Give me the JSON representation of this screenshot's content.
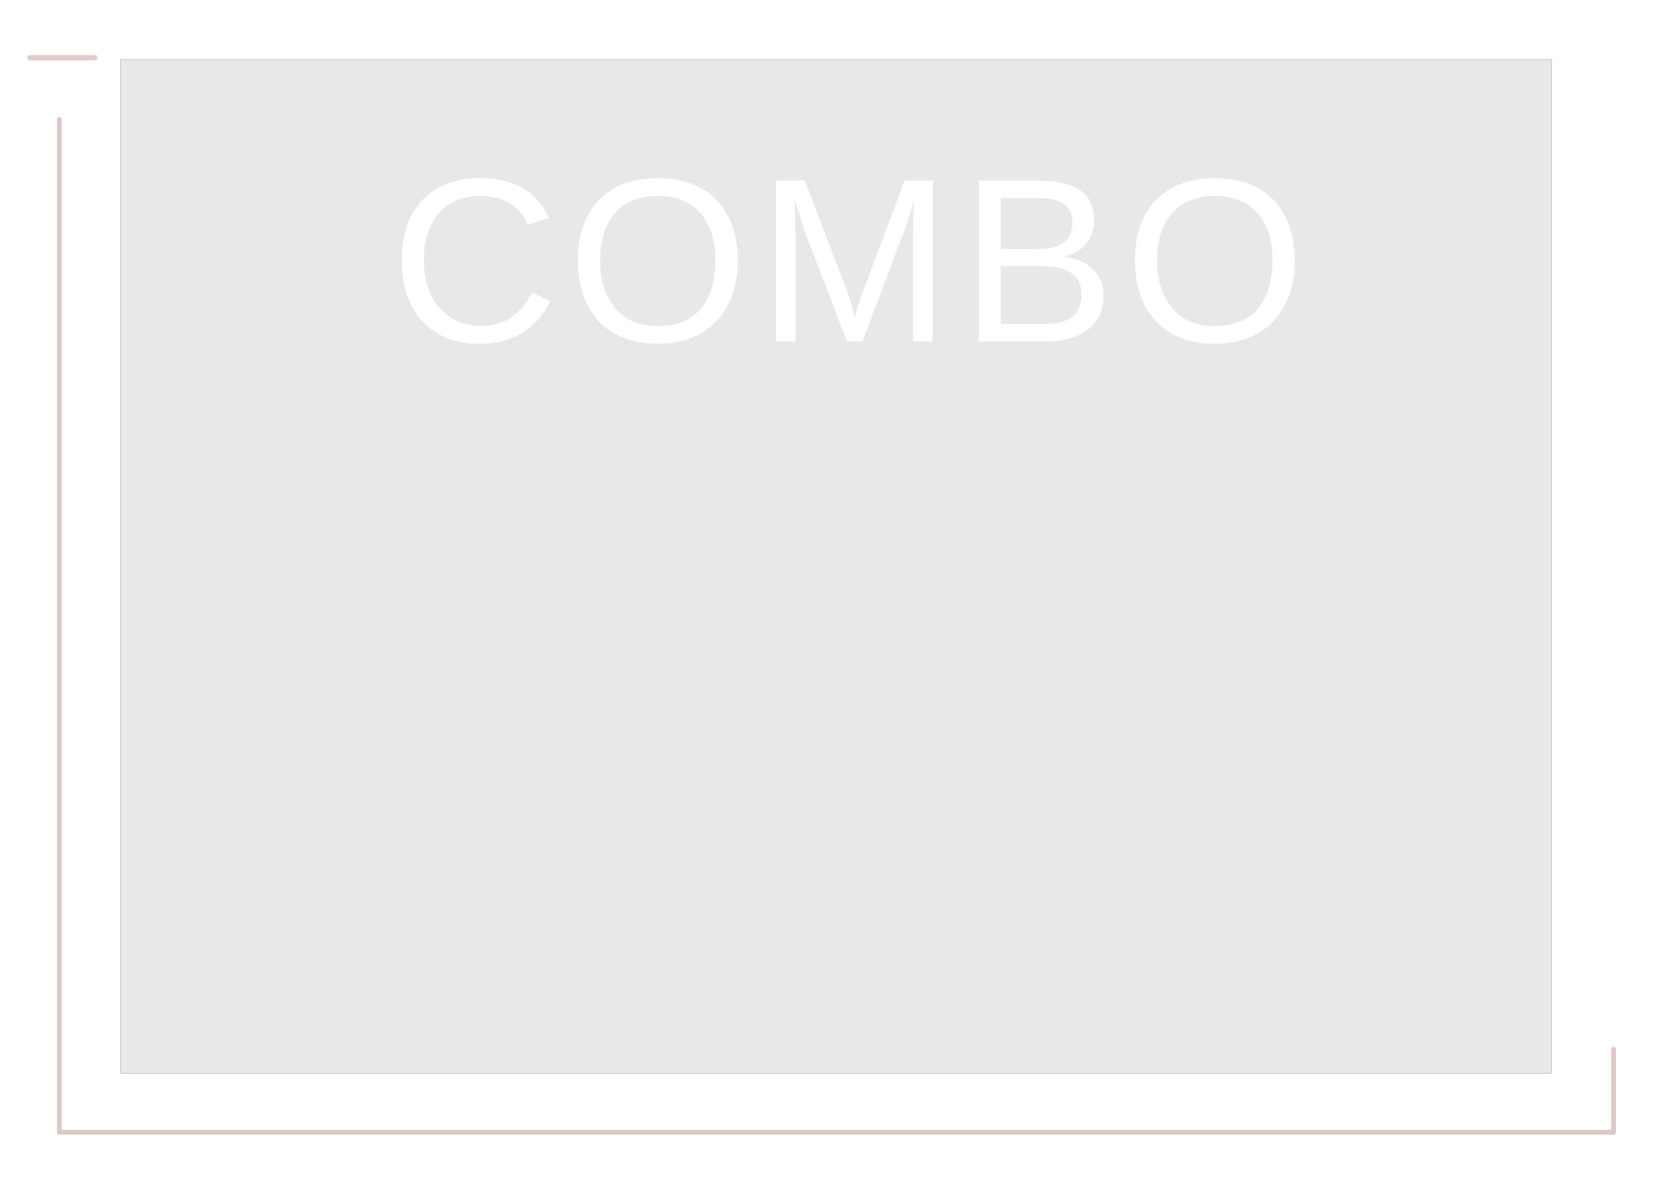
{
  "panel": {
    "title": "COMBO"
  },
  "colors": {
    "panel_background": "#e8e8e8",
    "panel_border": "#c8c8c8",
    "title_text": "#ffffff",
    "frame": "#dcc6c6"
  }
}
